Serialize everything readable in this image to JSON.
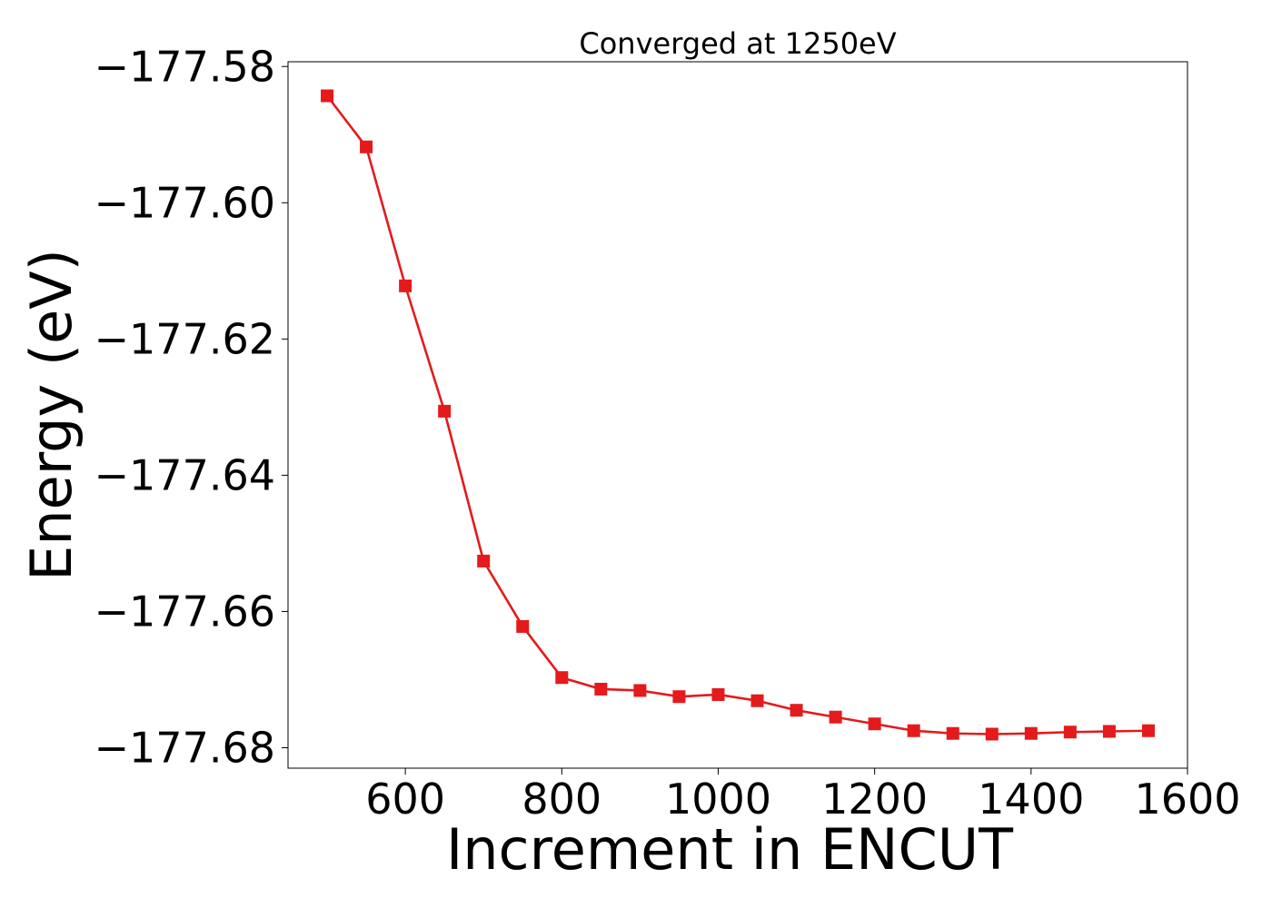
{
  "chart_data": {
    "type": "line",
    "title": "Converged at 1250eV",
    "xlabel": "Increment in ENCUT",
    "ylabel": "Energy (eV)",
    "xlim": [
      450,
      1600
    ],
    "ylim": [
      -177.683,
      -177.5793
    ],
    "xticks": [
      600,
      800,
      1000,
      1200,
      1400,
      1600
    ],
    "yticks": [
      -177.58,
      -177.6,
      -177.62,
      -177.64,
      -177.66,
      -177.68
    ],
    "ytick_labels": [
      "−177.58",
      "−177.60",
      "−177.62",
      "−177.64",
      "−177.66",
      "−177.68"
    ],
    "grid": false,
    "marker": "square",
    "color": "#e41a1c",
    "series": [
      {
        "x": [
          500,
          550,
          600,
          650,
          700,
          750,
          800,
          850,
          900,
          950,
          1000,
          1050,
          1100,
          1150,
          1200,
          1250,
          1300,
          1350,
          1400,
          1450,
          1500,
          1550
        ],
        "values": [
          -177.5843,
          -177.5918,
          -177.6122,
          -177.6306,
          -177.6526,
          -177.6622,
          -177.6697,
          -177.6714,
          -177.6716,
          -177.6725,
          -177.6722,
          -177.6731,
          -177.6745,
          -177.6755,
          -177.6765,
          -177.6775,
          -177.6779,
          -177.678,
          -177.6779,
          -177.6777,
          -177.6776,
          -177.6775
        ]
      }
    ]
  }
}
